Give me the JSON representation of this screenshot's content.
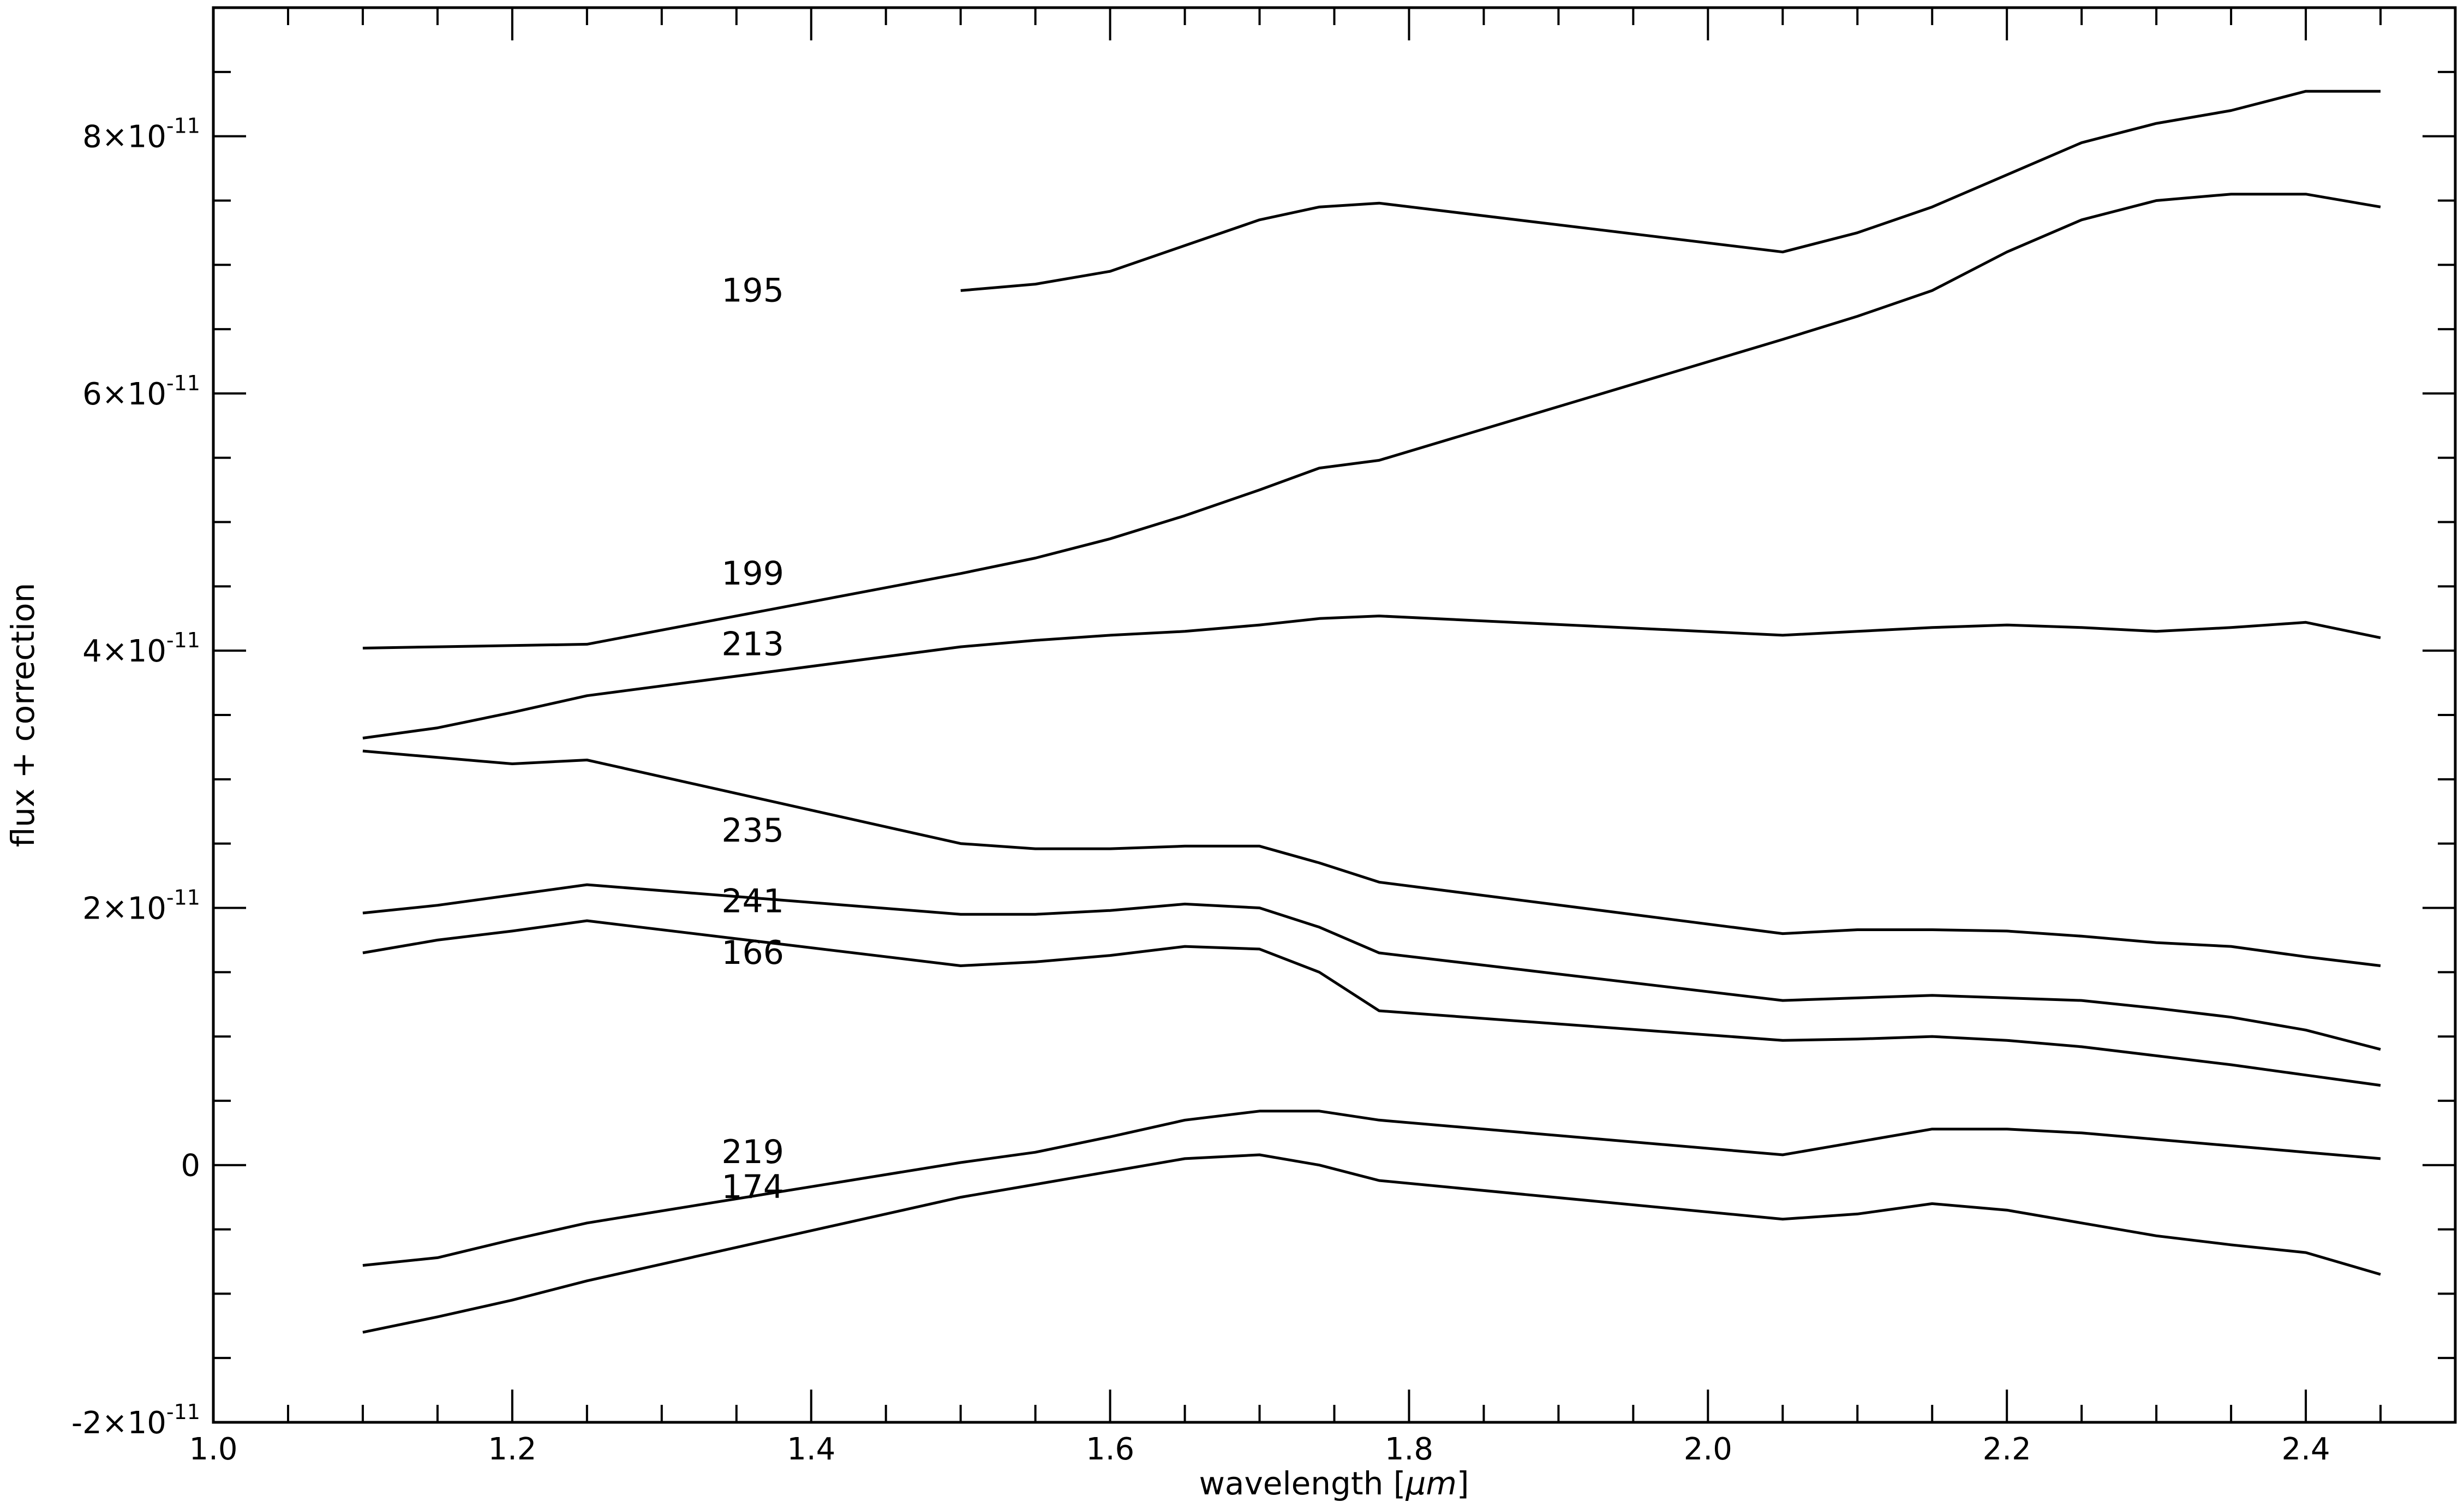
{
  "chart_data": {
    "type": "line",
    "xlabel_prefix": "wavelength [",
    "xlabel_unit": "μm",
    "xlabel_suffix": "]",
    "ylabel": "flux + correction",
    "xlim": [
      1.0,
      2.5
    ],
    "ylim": [
      -2e-11,
      9e-11
    ],
    "xticks": [
      {
        "value": 1.0,
        "label": "1.0"
      },
      {
        "value": 1.2,
        "label": "1.2"
      },
      {
        "value": 1.4,
        "label": "1.4"
      },
      {
        "value": 1.6,
        "label": "1.6"
      },
      {
        "value": 1.8,
        "label": "1.8"
      },
      {
        "value": 2.0,
        "label": "2.0"
      },
      {
        "value": 2.2,
        "label": "2.2"
      },
      {
        "value": 2.4,
        "label": "2.4"
      }
    ],
    "yticks": [
      {
        "value": -2e-11,
        "mantissa": "-2×10",
        "exponent": "-11"
      },
      {
        "value": 0,
        "mantissa": "0",
        "exponent": ""
      },
      {
        "value": 2e-11,
        "mantissa": "2×10",
        "exponent": "-11"
      },
      {
        "value": 4e-11,
        "mantissa": "4×10",
        "exponent": "-11"
      },
      {
        "value": 6e-11,
        "mantissa": "6×10",
        "exponent": "-11"
      },
      {
        "value": 8e-11,
        "mantissa": "8×10",
        "exponent": "-11"
      }
    ],
    "grid": false,
    "legend": "none",
    "line_color": "#000000",
    "series": [
      {
        "name": "195",
        "label_at": [
          1.34,
          6.8e-11
        ],
        "points": [
          [
            1.5,
            6.8e-11
          ],
          [
            1.55,
            6.85e-11
          ],
          [
            1.6,
            6.95e-11
          ],
          [
            1.65,
            7.15e-11
          ],
          [
            1.7,
            7.35e-11
          ],
          [
            1.74,
            7.45e-11
          ],
          [
            1.78,
            7.48e-11
          ],
          [
            2.05,
            7.1e-11
          ],
          [
            2.1,
            7.25e-11
          ],
          [
            2.15,
            7.45e-11
          ],
          [
            2.2,
            7.7e-11
          ],
          [
            2.25,
            7.95e-11
          ],
          [
            2.3,
            8.1e-11
          ],
          [
            2.35,
            8.2e-11
          ],
          [
            2.4,
            8.35e-11
          ],
          [
            2.45,
            8.35e-11
          ]
        ]
      },
      {
        "name": "199",
        "label_at": [
          1.34,
          4.6e-11
        ],
        "points": [
          [
            1.1,
            4.02e-11
          ],
          [
            1.15,
            4.03e-11
          ],
          [
            1.2,
            4.04e-11
          ],
          [
            1.25,
            4.05e-11
          ],
          [
            1.5,
            4.6e-11
          ],
          [
            1.55,
            4.72e-11
          ],
          [
            1.6,
            4.87e-11
          ],
          [
            1.65,
            5.05e-11
          ],
          [
            1.7,
            5.25e-11
          ],
          [
            1.74,
            5.42e-11
          ],
          [
            1.78,
            5.48e-11
          ],
          [
            2.05,
            6.42e-11
          ],
          [
            2.1,
            6.6e-11
          ],
          [
            2.15,
            6.8e-11
          ],
          [
            2.2,
            7.1e-11
          ],
          [
            2.25,
            7.35e-11
          ],
          [
            2.3,
            7.5e-11
          ],
          [
            2.35,
            7.55e-11
          ],
          [
            2.4,
            7.55e-11
          ],
          [
            2.45,
            7.45e-11
          ]
        ]
      },
      {
        "name": "213",
        "label_at": [
          1.34,
          4.05e-11
        ],
        "points": [
          [
            1.1,
            3.32e-11
          ],
          [
            1.15,
            3.4e-11
          ],
          [
            1.2,
            3.52e-11
          ],
          [
            1.25,
            3.65e-11
          ],
          [
            1.5,
            4.03e-11
          ],
          [
            1.55,
            4.08e-11
          ],
          [
            1.6,
            4.12e-11
          ],
          [
            1.65,
            4.15e-11
          ],
          [
            1.7,
            4.2e-11
          ],
          [
            1.74,
            4.25e-11
          ],
          [
            1.78,
            4.27e-11
          ],
          [
            2.05,
            4.12e-11
          ],
          [
            2.1,
            4.15e-11
          ],
          [
            2.15,
            4.18e-11
          ],
          [
            2.2,
            4.2e-11
          ],
          [
            2.25,
            4.18e-11
          ],
          [
            2.3,
            4.15e-11
          ],
          [
            2.35,
            4.18e-11
          ],
          [
            2.4,
            4.22e-11
          ],
          [
            2.45,
            4.1e-11
          ]
        ]
      },
      {
        "name": "235",
        "label_at": [
          1.34,
          2.6e-11
        ],
        "points": [
          [
            1.1,
            3.22e-11
          ],
          [
            1.15,
            3.17e-11
          ],
          [
            1.2,
            3.12e-11
          ],
          [
            1.25,
            3.15e-11
          ],
          [
            1.5,
            2.5e-11
          ],
          [
            1.55,
            2.46e-11
          ],
          [
            1.6,
            2.46e-11
          ],
          [
            1.65,
            2.48e-11
          ],
          [
            1.7,
            2.48e-11
          ],
          [
            1.74,
            2.35e-11
          ],
          [
            1.78,
            2.2e-11
          ],
          [
            2.05,
            1.8e-11
          ],
          [
            2.1,
            1.83e-11
          ],
          [
            2.15,
            1.83e-11
          ],
          [
            2.2,
            1.82e-11
          ],
          [
            2.25,
            1.78e-11
          ],
          [
            2.3,
            1.73e-11
          ],
          [
            2.35,
            1.7e-11
          ],
          [
            2.4,
            1.62e-11
          ],
          [
            2.45,
            1.55e-11
          ]
        ]
      },
      {
        "name": "241",
        "label_at": [
          1.34,
          2.05e-11
        ],
        "points": [
          [
            1.1,
            1.96e-11
          ],
          [
            1.15,
            2.02e-11
          ],
          [
            1.2,
            2.1e-11
          ],
          [
            1.25,
            2.18e-11
          ],
          [
            1.5,
            1.95e-11
          ],
          [
            1.55,
            1.95e-11
          ],
          [
            1.6,
            1.98e-11
          ],
          [
            1.65,
            2.03e-11
          ],
          [
            1.7,
            2e-11
          ],
          [
            1.74,
            1.85e-11
          ],
          [
            1.78,
            1.65e-11
          ],
          [
            2.05,
            1.28e-11
          ],
          [
            2.1,
            1.3e-11
          ],
          [
            2.15,
            1.32e-11
          ],
          [
            2.2,
            1.3e-11
          ],
          [
            2.25,
            1.28e-11
          ],
          [
            2.3,
            1.22e-11
          ],
          [
            2.35,
            1.15e-11
          ],
          [
            2.4,
            1.05e-11
          ],
          [
            2.45,
            9e-12
          ]
        ]
      },
      {
        "name": "166",
        "label_at": [
          1.34,
          1.65e-11
        ],
        "points": [
          [
            1.1,
            1.65e-11
          ],
          [
            1.15,
            1.75e-11
          ],
          [
            1.2,
            1.82e-11
          ],
          [
            1.25,
            1.9e-11
          ],
          [
            1.5,
            1.55e-11
          ],
          [
            1.55,
            1.58e-11
          ],
          [
            1.6,
            1.63e-11
          ],
          [
            1.65,
            1.7e-11
          ],
          [
            1.7,
            1.68e-11
          ],
          [
            1.74,
            1.5e-11
          ],
          [
            1.78,
            1.2e-11
          ],
          [
            2.05,
            9.7e-12
          ],
          [
            2.1,
            9.8e-12
          ],
          [
            2.15,
            1e-11
          ],
          [
            2.2,
            9.7e-12
          ],
          [
            2.25,
            9.2e-12
          ],
          [
            2.3,
            8.5e-12
          ],
          [
            2.35,
            7.8e-12
          ],
          [
            2.4,
            7e-12
          ],
          [
            2.45,
            6.2e-12
          ]
        ]
      },
      {
        "name": "219",
        "label_at": [
          1.34,
          1e-12
        ],
        "points": [
          [
            1.1,
            -7.8e-12
          ],
          [
            1.15,
            -7.2e-12
          ],
          [
            1.2,
            -5.8e-12
          ],
          [
            1.25,
            -4.5e-12
          ],
          [
            1.5,
            2e-13
          ],
          [
            1.55,
            1e-12
          ],
          [
            1.6,
            2.2e-12
          ],
          [
            1.65,
            3.5e-12
          ],
          [
            1.7,
            4.2e-12
          ],
          [
            1.74,
            4.2e-12
          ],
          [
            1.78,
            3.5e-12
          ],
          [
            2.05,
            8e-13
          ],
          [
            2.1,
            1.8e-12
          ],
          [
            2.15,
            2.8e-12
          ],
          [
            2.2,
            2.8e-12
          ],
          [
            2.25,
            2.5e-12
          ],
          [
            2.3,
            2e-12
          ],
          [
            2.35,
            1.5e-12
          ],
          [
            2.4,
            1e-12
          ],
          [
            2.45,
            5e-13
          ]
        ]
      },
      {
        "name": "174",
        "label_at": [
          1.34,
          -1.7e-12
        ],
        "points": [
          [
            1.1,
            -1.3e-11
          ],
          [
            1.15,
            -1.18e-11
          ],
          [
            1.2,
            -1.05e-11
          ],
          [
            1.25,
            -9e-12
          ],
          [
            1.5,
            -2.5e-12
          ],
          [
            1.55,
            -1.5e-12
          ],
          [
            1.6,
            -5e-13
          ],
          [
            1.65,
            5e-13
          ],
          [
            1.7,
            8e-13
          ],
          [
            1.74,
            0.0
          ],
          [
            1.78,
            -1.2e-12
          ],
          [
            2.05,
            -4.2e-12
          ],
          [
            2.1,
            -3.8e-12
          ],
          [
            2.15,
            -3e-12
          ],
          [
            2.2,
            -3.5e-12
          ],
          [
            2.25,
            -4.5e-12
          ],
          [
            2.3,
            -5.5e-12
          ],
          [
            2.35,
            -6.2e-12
          ],
          [
            2.4,
            -6.8e-12
          ],
          [
            2.45,
            -8.5e-12
          ]
        ]
      }
    ]
  }
}
